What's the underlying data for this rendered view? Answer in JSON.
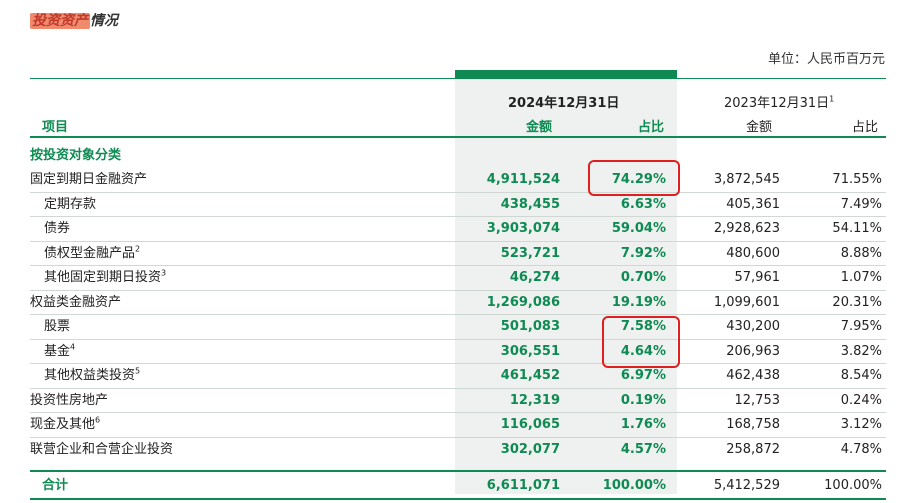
{
  "title": {
    "highlight": "投资资产",
    "rest": "情况"
  },
  "unit": "单位：人民币百万元",
  "header": {
    "date_2024": "2024年12月31日",
    "date_2023": "2023年12月31日",
    "date_2023_note": "1",
    "item": "项目",
    "amount_2024": "金额",
    "ratio_2024": "占比",
    "amount_2023": "金额",
    "ratio_2023": "占比"
  },
  "category": "按投资对象分类",
  "rows": [
    {
      "name": "固定到期日金融资产",
      "note": "",
      "a24": "4,911,524",
      "p24": "74.29%",
      "a23": "3,872,545",
      "p23": "71.55%"
    },
    {
      "name": "定期存款",
      "note": "",
      "a24": "438,455",
      "p24": "6.63%",
      "a23": "405,361",
      "p23": "7.49%"
    },
    {
      "name": "债券",
      "note": "",
      "a24": "3,903,074",
      "p24": "59.04%",
      "a23": "2,928,623",
      "p23": "54.11%"
    },
    {
      "name": "债权型金融产品",
      "note": "2",
      "a24": "523,721",
      "p24": "7.92%",
      "a23": "480,600",
      "p23": "8.88%"
    },
    {
      "name": "其他固定到期日投资",
      "note": "3",
      "a24": "46,274",
      "p24": "0.70%",
      "a23": "57,961",
      "p23": "1.07%"
    },
    {
      "name": "权益类金融资产",
      "note": "",
      "a24": "1,269,086",
      "p24": "19.19%",
      "a23": "1,099,601",
      "p23": "20.31%"
    },
    {
      "name": "股票",
      "note": "",
      "a24": "501,083",
      "p24": "7.58%",
      "a23": "430,200",
      "p23": "7.95%"
    },
    {
      "name": "基金",
      "note": "4",
      "a24": "306,551",
      "p24": "4.64%",
      "a23": "206,963",
      "p23": "3.82%"
    },
    {
      "name": "其他权益类投资",
      "note": "5",
      "a24": "461,452",
      "p24": "6.97%",
      "a23": "462,438",
      "p23": "8.54%"
    },
    {
      "name": "投资性房地产",
      "note": "",
      "a24": "12,319",
      "p24": "0.19%",
      "a23": "12,753",
      "p23": "0.24%"
    },
    {
      "name": "现金及其他",
      "note": "6",
      "a24": "116,065",
      "p24": "1.76%",
      "a23": "168,758",
      "p23": "3.12%"
    },
    {
      "name": "联营企业和合营企业投资",
      "note": "",
      "a24": "302,077",
      "p24": "4.57%",
      "a23": "258,872",
      "p23": "4.78%"
    }
  ],
  "total": {
    "name": "合计",
    "a24": "6,611,071",
    "p24": "100.00%",
    "a23": "5,412,529",
    "p23": "100.00%"
  },
  "colors": {
    "accent": "#0e8a52",
    "highlight_box": "#e02020"
  }
}
